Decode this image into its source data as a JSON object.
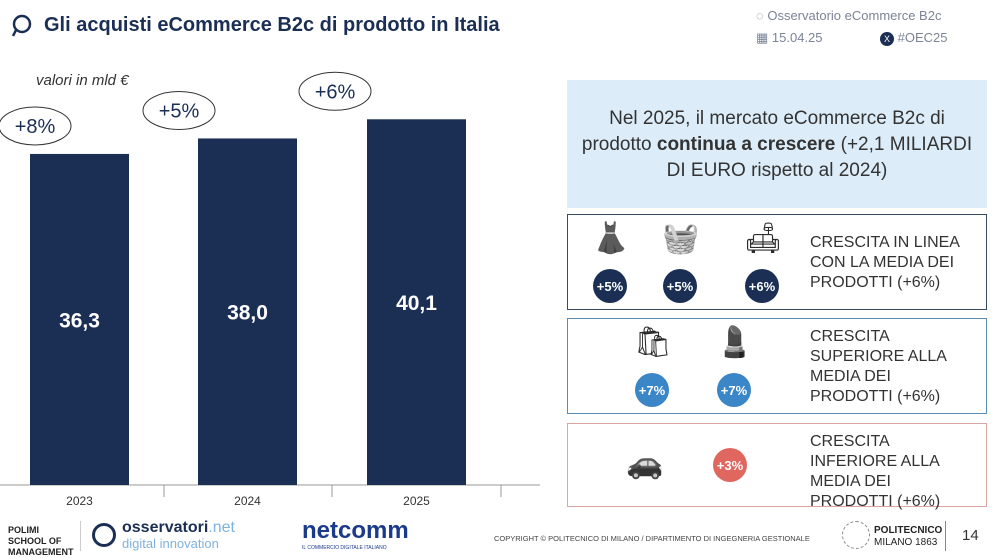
{
  "header": {
    "title": "Gli acquisti eCommerce B2c di prodotto in Italia",
    "observatory": "Osservatorio eCommerce B2c",
    "date": "15.04.25",
    "hashtag": "#OEC25"
  },
  "chart_data": {
    "type": "bar",
    "title": "",
    "ylabel": "valori in mld €",
    "categories": [
      "2023",
      "2024",
      "2025"
    ],
    "values": [
      36.3,
      38.0,
      40.1
    ],
    "value_labels": [
      "36,3",
      "38,0",
      "40,1"
    ],
    "growth_labels": [
      "+8%",
      "+5%",
      "+6%"
    ],
    "bar_color": "#1b2f55",
    "grid": false
  },
  "callout": {
    "text_pre": "Nel 2025, il mercato eCommerce B2c di prodotto ",
    "text_bold": "continua a crescere",
    "text_post": " (+2,1 MILIARDI DI EURO rispetto al 2024)"
  },
  "groups": [
    {
      "text": "CRESCITA IN LINEA CON LA MEDIA DEI PRODOTTI (+6%)",
      "border": "#3a4a60",
      "items": [
        {
          "icon": "dress-icon",
          "badge": "+5%"
        },
        {
          "icon": "appliances-icon",
          "badge": "+5%"
        },
        {
          "icon": "sofa-icon",
          "badge": "+6%"
        }
      ],
      "badge_color": "#1b2f55"
    },
    {
      "text": "CRESCITA SUPERIORE ALLA MEDIA DEI PRODOTTI (+6%)",
      "border": "#5a8db5",
      "items": [
        {
          "icon": "grocery-bag-icon",
          "badge": "+7%"
        },
        {
          "icon": "cosmetics-icon",
          "badge": "+7%"
        }
      ],
      "badge_color": "#3b86c6"
    },
    {
      "text": "CRESCITA INFERIORE ALLA MEDIA DEI PRODOTTI (+6%)",
      "border": "#d9a5a5",
      "items": [
        {
          "icon": "car-icon",
          "badge": "+3%"
        }
      ],
      "badge_color": "#e0675f"
    }
  ],
  "footer": {
    "polimi": "POLIMI SCHOOL OF MANAGEMENT",
    "osservatori": "osservatori",
    "osservatori_net": ".net",
    "osservatori_sub": "digital innovation",
    "netcomm": "netcomm",
    "netcomm_sub": "IL COMMERCIO DIGITALE ITALIANO",
    "copyright": "COPYRIGHT © POLITECNICO DI MILANO / DIPARTIMENTO DI INGEGNERIA GESTIONALE",
    "politecnico": "POLITECNICO",
    "politecnico_sub": "MILANO 1863",
    "page": "14"
  }
}
